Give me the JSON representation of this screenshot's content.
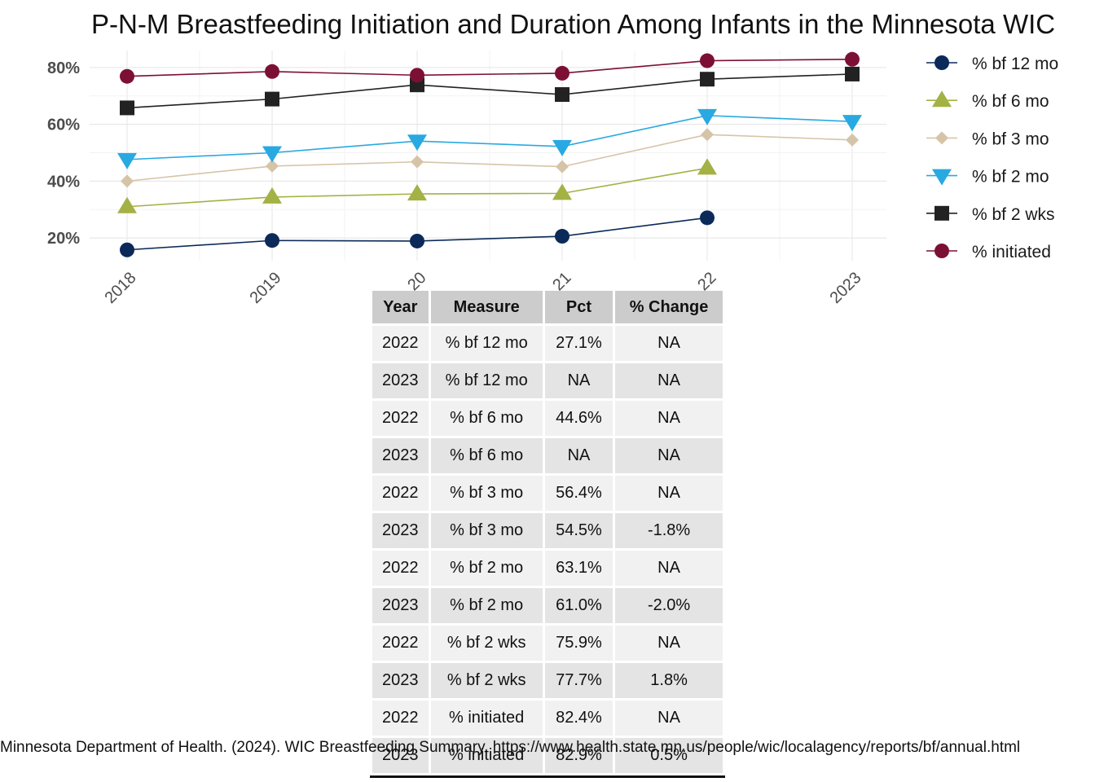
{
  "chart_data": {
    "type": "line",
    "title": "P-N-M Breastfeeding Initiation and Duration Among Infants in the Minnesota WIC",
    "xlabel": "",
    "ylabel": "",
    "x": [
      "2018",
      "2019",
      "2020",
      "2021",
      "2022",
      "2023"
    ],
    "x_tick_labels": [
      "2018",
      "2019",
      "20",
      "21",
      "22",
      "2023"
    ],
    "y_ticks": [
      "20%",
      "40%",
      "60%",
      "80%"
    ],
    "y_tick_values": [
      20,
      40,
      60,
      80
    ],
    "ylim": [
      12,
      86
    ],
    "grid": true,
    "legend_position": "right",
    "series": [
      {
        "name": "% bf 12 mo",
        "values": [
          15.8,
          19.1,
          18.9,
          20.6,
          27.1,
          null
        ],
        "color": "#0b2a59",
        "marker": "circle"
      },
      {
        "name": "% bf 6 mo",
        "values": [
          31.0,
          34.4,
          35.5,
          35.7,
          44.6,
          null
        ],
        "color": "#a4b145",
        "marker": "triangle-up"
      },
      {
        "name": "% bf 3 mo",
        "values": [
          40.0,
          45.3,
          46.8,
          45.1,
          56.4,
          54.5
        ],
        "color": "#d6c4a8",
        "marker": "diamond"
      },
      {
        "name": "% bf 2 mo",
        "values": [
          47.6,
          50.0,
          54.1,
          52.2,
          63.1,
          61.0
        ],
        "color": "#29a9e1",
        "marker": "triangle-down"
      },
      {
        "name": "% bf 2 wks",
        "values": [
          65.8,
          68.9,
          73.9,
          70.5,
          75.9,
          77.7
        ],
        "color": "#222222",
        "marker": "square"
      },
      {
        "name": "% initiated",
        "values": [
          76.9,
          78.6,
          77.3,
          78.0,
          82.4,
          82.9
        ],
        "color": "#7c1034",
        "marker": "circle"
      }
    ]
  },
  "table": {
    "headers": [
      "Year",
      "Measure",
      "Pct",
      "% Change"
    ],
    "rows": [
      [
        "2022",
        "% bf 12 mo",
        "27.1%",
        "NA"
      ],
      [
        "2023",
        "% bf 12 mo",
        "NA",
        "NA"
      ],
      [
        "2022",
        "% bf 6 mo",
        "44.6%",
        "NA"
      ],
      [
        "2023",
        "% bf 6 mo",
        "NA",
        "NA"
      ],
      [
        "2022",
        "% bf 3 mo",
        "56.4%",
        "NA"
      ],
      [
        "2023",
        "% bf 3 mo",
        "54.5%",
        "-1.8%"
      ],
      [
        "2022",
        "% bf 2 mo",
        "63.1%",
        "NA"
      ],
      [
        "2023",
        "% bf 2 mo",
        "61.0%",
        "-2.0%"
      ],
      [
        "2022",
        "% bf 2 wks",
        "75.9%",
        "NA"
      ],
      [
        "2023",
        "% bf 2 wks",
        "77.7%",
        "1.8%"
      ],
      [
        "2022",
        "% initiated",
        "82.4%",
        "NA"
      ],
      [
        "2023",
        "% initiated",
        "82.9%",
        "0.5%"
      ]
    ]
  },
  "caption": "Minnesota Department of Health. (2024). WIC Breastfeeding Summary. https://www.health.state.mn.us/people/wic/localagency/reports/bf/annual.html"
}
